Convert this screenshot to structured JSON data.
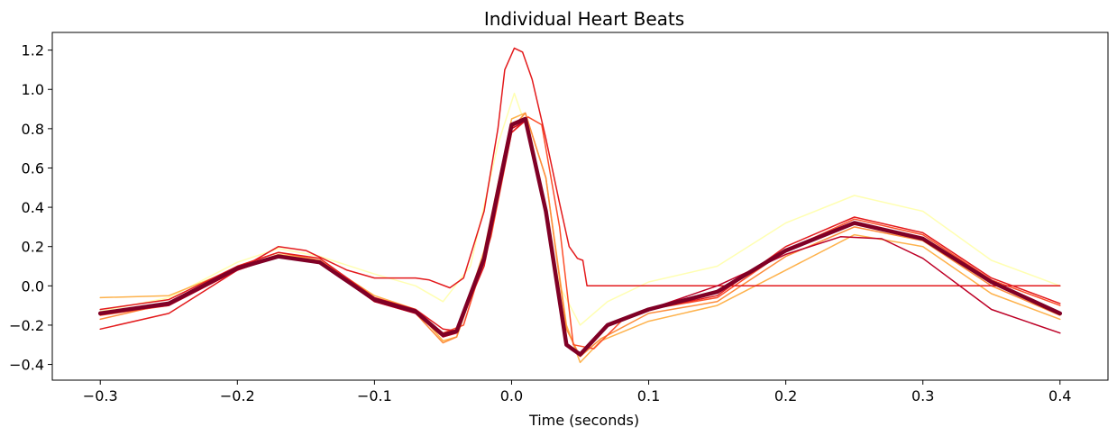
{
  "chart_data": {
    "type": "line",
    "title": "Individual Heart Beats",
    "xlabel": "Time (seconds)",
    "ylabel": "",
    "xlim": [
      -0.335,
      0.435
    ],
    "ylim": [
      -0.48,
      1.29
    ],
    "xticks": [
      -0.3,
      -0.2,
      -0.1,
      0.0,
      0.1,
      0.2,
      0.3,
      0.4
    ],
    "xtick_labels": [
      "−0.3",
      "−0.2",
      "−0.1",
      "0.0",
      "0.1",
      "0.2",
      "0.3",
      "0.4"
    ],
    "yticks": [
      -0.4,
      -0.2,
      0.0,
      0.2,
      0.4,
      0.6,
      0.8,
      1.0,
      1.2
    ],
    "ytick_labels": [
      "−0.4",
      "−0.2",
      "0.0",
      "0.2",
      "0.4",
      "0.6",
      "0.8",
      "1.0",
      "1.2"
    ],
    "grid": false,
    "legend": false,
    "series": [
      {
        "color": "#ffffb2",
        "width": 1.5,
        "points": [
          [
            -0.3,
            -0.13
          ],
          [
            -0.25,
            -0.06
          ],
          [
            -0.2,
            0.12
          ],
          [
            -0.17,
            0.19
          ],
          [
            -0.14,
            0.15
          ],
          [
            -0.1,
            0.06
          ],
          [
            -0.07,
            0.0
          ],
          [
            -0.05,
            -0.08
          ],
          [
            -0.03,
            0.1
          ],
          [
            -0.01,
            0.72
          ],
          [
            0.002,
            0.98
          ],
          [
            0.015,
            0.72
          ],
          [
            0.035,
            0.0
          ],
          [
            0.05,
            -0.2
          ],
          [
            0.07,
            -0.08
          ],
          [
            0.1,
            0.02
          ],
          [
            0.15,
            0.1
          ],
          [
            0.2,
            0.32
          ],
          [
            0.25,
            0.46
          ],
          [
            0.3,
            0.38
          ],
          [
            0.35,
            0.13
          ],
          [
            0.4,
            0.0
          ]
        ]
      },
      {
        "color": "#feb24c",
        "width": 1.5,
        "points": [
          [
            -0.3,
            -0.06
          ],
          [
            -0.25,
            -0.05
          ],
          [
            -0.2,
            0.09
          ],
          [
            -0.17,
            0.16
          ],
          [
            -0.14,
            0.13
          ],
          [
            -0.1,
            -0.05
          ],
          [
            -0.07,
            -0.12
          ],
          [
            -0.05,
            -0.28
          ],
          [
            -0.04,
            -0.26
          ],
          [
            -0.02,
            0.18
          ],
          [
            0.0,
            0.85
          ],
          [
            0.01,
            0.88
          ],
          [
            0.025,
            0.55
          ],
          [
            0.04,
            -0.2
          ],
          [
            0.05,
            -0.39
          ],
          [
            0.065,
            -0.28
          ],
          [
            0.1,
            -0.18
          ],
          [
            0.15,
            -0.1
          ],
          [
            0.2,
            0.08
          ],
          [
            0.25,
            0.26
          ],
          [
            0.3,
            0.2
          ],
          [
            0.35,
            -0.04
          ],
          [
            0.4,
            -0.17
          ]
        ]
      },
      {
        "color": "#fd8d3c",
        "width": 1.5,
        "points": [
          [
            -0.3,
            -0.17
          ],
          [
            -0.25,
            -0.09
          ],
          [
            -0.2,
            0.1
          ],
          [
            -0.17,
            0.17
          ],
          [
            -0.14,
            0.13
          ],
          [
            -0.1,
            -0.08
          ],
          [
            -0.07,
            -0.14
          ],
          [
            -0.05,
            -0.29
          ],
          [
            -0.04,
            -0.26
          ],
          [
            -0.02,
            0.14
          ],
          [
            0.0,
            0.8
          ],
          [
            0.01,
            0.88
          ],
          [
            0.025,
            0.55
          ],
          [
            0.04,
            -0.22
          ],
          [
            0.05,
            -0.36
          ],
          [
            0.065,
            -0.27
          ],
          [
            0.1,
            -0.14
          ],
          [
            0.15,
            -0.08
          ],
          [
            0.2,
            0.15
          ],
          [
            0.25,
            0.3
          ],
          [
            0.3,
            0.23
          ],
          [
            0.35,
            0.0
          ],
          [
            0.4,
            -0.15
          ]
        ]
      },
      {
        "color": "#fc4e2a",
        "width": 1.5,
        "points": [
          [
            -0.3,
            -0.15
          ],
          [
            -0.25,
            -0.1
          ],
          [
            -0.2,
            0.08
          ],
          [
            -0.17,
            0.15
          ],
          [
            -0.14,
            0.12
          ],
          [
            -0.1,
            -0.08
          ],
          [
            -0.07,
            -0.13
          ],
          [
            -0.05,
            -0.24
          ],
          [
            -0.035,
            -0.2
          ],
          [
            -0.015,
            0.25
          ],
          [
            0.0,
            0.78
          ],
          [
            0.012,
            0.86
          ],
          [
            0.022,
            0.82
          ],
          [
            0.035,
            0.3
          ],
          [
            0.045,
            -0.3
          ],
          [
            0.06,
            -0.32
          ],
          [
            0.08,
            -0.18
          ],
          [
            0.1,
            -0.12
          ],
          [
            0.15,
            -0.06
          ],
          [
            0.2,
            0.18
          ],
          [
            0.25,
            0.34
          ],
          [
            0.3,
            0.26
          ],
          [
            0.35,
            0.03
          ],
          [
            0.4,
            -0.1
          ]
        ]
      },
      {
        "color": "#e31a1c",
        "width": 1.5,
        "points": [
          [
            -0.3,
            -0.12
          ],
          [
            -0.25,
            -0.07
          ],
          [
            -0.2,
            0.1
          ],
          [
            -0.17,
            0.17
          ],
          [
            -0.14,
            0.14
          ],
          [
            -0.1,
            -0.06
          ],
          [
            -0.07,
            -0.12
          ],
          [
            -0.05,
            -0.22
          ],
          [
            -0.04,
            -0.23
          ],
          [
            -0.02,
            0.1
          ],
          [
            0.0,
            0.78
          ],
          [
            0.01,
            0.84
          ],
          [
            0.025,
            0.4
          ],
          [
            0.04,
            -0.3
          ],
          [
            0.05,
            -0.34
          ],
          [
            0.07,
            -0.2
          ],
          [
            0.1,
            -0.12
          ],
          [
            0.15,
            -0.05
          ],
          [
            0.2,
            0.2
          ],
          [
            0.25,
            0.35
          ],
          [
            0.3,
            0.27
          ],
          [
            0.35,
            0.04
          ],
          [
            0.4,
            -0.09
          ]
        ]
      },
      {
        "color": "#e31a1c",
        "width": 1.5,
        "points": [
          [
            -0.3,
            -0.22
          ],
          [
            -0.25,
            -0.14
          ],
          [
            -0.2,
            0.08
          ],
          [
            -0.17,
            0.2
          ],
          [
            -0.15,
            0.18
          ],
          [
            -0.12,
            0.08
          ],
          [
            -0.1,
            0.04
          ],
          [
            -0.07,
            0.04
          ],
          [
            -0.06,
            0.03
          ],
          [
            -0.045,
            -0.01
          ],
          [
            -0.035,
            0.04
          ],
          [
            -0.02,
            0.38
          ],
          [
            -0.01,
            0.8
          ],
          [
            -0.005,
            1.1
          ],
          [
            0.002,
            1.21
          ],
          [
            0.008,
            1.19
          ],
          [
            0.015,
            1.05
          ],
          [
            0.025,
            0.75
          ],
          [
            0.035,
            0.42
          ],
          [
            0.042,
            0.2
          ],
          [
            0.048,
            0.14
          ],
          [
            0.052,
            0.13
          ],
          [
            0.055,
            0.0
          ],
          [
            0.4,
            0.0
          ]
        ]
      },
      {
        "color": "#bd0026",
        "width": 1.5,
        "points": [
          [
            -0.3,
            -0.14
          ],
          [
            -0.25,
            -0.1
          ],
          [
            -0.2,
            0.08
          ],
          [
            -0.17,
            0.15
          ],
          [
            -0.14,
            0.12
          ],
          [
            -0.1,
            -0.08
          ],
          [
            -0.07,
            -0.14
          ],
          [
            -0.05,
            -0.26
          ],
          [
            -0.04,
            -0.24
          ],
          [
            -0.02,
            0.14
          ],
          [
            0.0,
            0.8
          ],
          [
            0.01,
            0.84
          ],
          [
            0.025,
            0.38
          ],
          [
            0.04,
            -0.3
          ],
          [
            0.05,
            -0.35
          ],
          [
            0.07,
            -0.2
          ],
          [
            0.1,
            -0.12
          ],
          [
            0.15,
            0.0
          ],
          [
            0.2,
            0.16
          ],
          [
            0.24,
            0.25
          ],
          [
            0.27,
            0.24
          ],
          [
            0.3,
            0.14
          ],
          [
            0.35,
            -0.12
          ],
          [
            0.4,
            -0.24
          ]
        ]
      },
      {
        "color": "#800026",
        "width": 4.5,
        "points": [
          [
            -0.3,
            -0.14
          ],
          [
            -0.25,
            -0.09
          ],
          [
            -0.2,
            0.09
          ],
          [
            -0.17,
            0.15
          ],
          [
            -0.14,
            0.12
          ],
          [
            -0.1,
            -0.07
          ],
          [
            -0.07,
            -0.13
          ],
          [
            -0.05,
            -0.25
          ],
          [
            -0.04,
            -0.23
          ],
          [
            -0.02,
            0.14
          ],
          [
            0.0,
            0.82
          ],
          [
            0.01,
            0.85
          ],
          [
            0.025,
            0.38
          ],
          [
            0.04,
            -0.3
          ],
          [
            0.05,
            -0.35
          ],
          [
            0.07,
            -0.2
          ],
          [
            0.1,
            -0.12
          ],
          [
            0.15,
            -0.03
          ],
          [
            0.2,
            0.18
          ],
          [
            0.25,
            0.32
          ],
          [
            0.3,
            0.24
          ],
          [
            0.35,
            0.02
          ],
          [
            0.4,
            -0.14
          ]
        ]
      }
    ]
  }
}
